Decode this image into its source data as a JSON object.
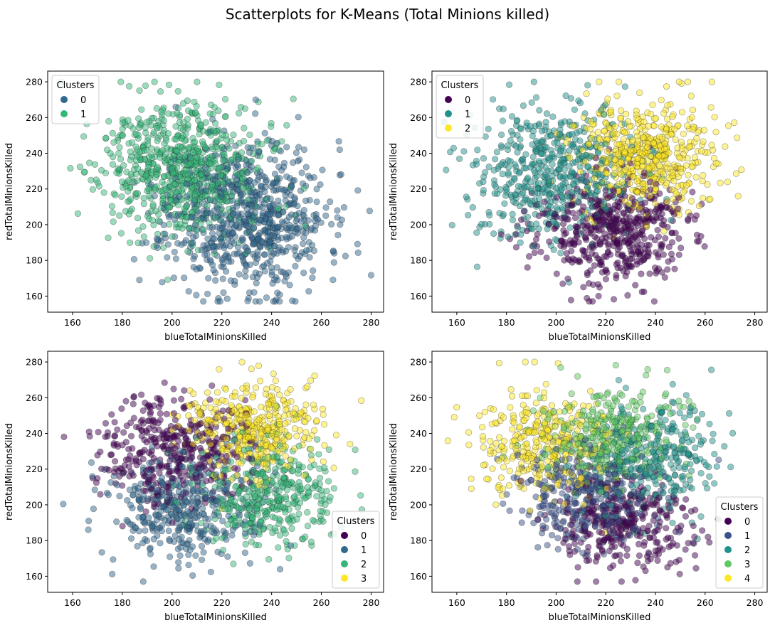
{
  "figure": {
    "suptitle": "Scatterplots for K-Means (Total Minions killed)"
  },
  "chart_data": [
    {
      "type": "scatter",
      "xlabel": "blueTotalMinionsKilled",
      "ylabel": "redTotalMinionsKilled",
      "xlim": [
        150,
        285
      ],
      "ylim": [
        151,
        286
      ],
      "xticks": [
        160,
        180,
        200,
        220,
        240,
        260,
        280
      ],
      "yticks": [
        160,
        180,
        200,
        220,
        240,
        260,
        280
      ],
      "legend": {
        "title": "Clusters",
        "position": "top-left"
      },
      "series": [
        {
          "name": "0",
          "color": "#31688e",
          "center": [
            230,
            205
          ],
          "spread": [
            16,
            21
          ]
        },
        {
          "name": "1",
          "color": "#35b779",
          "center": [
            205,
            230
          ],
          "spread": [
            16,
            19
          ]
        }
      ],
      "points_per_series": 750,
      "seed": 11
    },
    {
      "type": "scatter",
      "xlabel": "blueTotalMinionsKilled",
      "ylabel": "redTotalMinionsKilled",
      "xlim": [
        150,
        285
      ],
      "ylim": [
        151,
        286
      ],
      "xticks": [
        160,
        180,
        200,
        220,
        240,
        260,
        280
      ],
      "yticks": [
        160,
        180,
        200,
        220,
        240,
        260,
        280
      ],
      "legend": {
        "title": "Clusters",
        "position": "top-left"
      },
      "series": [
        {
          "name": "0",
          "color": "#440154",
          "center": [
            222,
            196
          ],
          "spread": [
            15,
            15
          ]
        },
        {
          "name": "1",
          "color": "#21918c",
          "center": [
            198,
            228
          ],
          "spread": [
            16,
            19
          ]
        },
        {
          "name": "2",
          "color": "#fde725",
          "center": [
            236,
            238
          ],
          "spread": [
            14,
            15
          ]
        }
      ],
      "points_per_series": 520,
      "seed": 23
    },
    {
      "type": "scatter",
      "xlabel": "blueTotalMinionsKilled",
      "ylabel": "redTotalMinionsKilled",
      "xlim": [
        150,
        285
      ],
      "ylim": [
        151,
        286
      ],
      "xticks": [
        160,
        180,
        200,
        220,
        240,
        260,
        280
      ],
      "yticks": [
        160,
        180,
        200,
        220,
        240,
        260,
        280
      ],
      "legend": {
        "title": "Clusters",
        "position": "bottom-right"
      },
      "series": [
        {
          "name": "0",
          "color": "#440154",
          "center": [
            200,
            232
          ],
          "spread": [
            14,
            15
          ]
        },
        {
          "name": "1",
          "color": "#31688e",
          "center": [
            205,
            198
          ],
          "spread": [
            15,
            15
          ]
        },
        {
          "name": "2",
          "color": "#35b779",
          "center": [
            238,
            205
          ],
          "spread": [
            14,
            15
          ]
        },
        {
          "name": "3",
          "color": "#fde725",
          "center": [
            232,
            243
          ],
          "spread": [
            13,
            13
          ]
        }
      ],
      "points_per_series": 400,
      "seed": 37
    },
    {
      "type": "scatter",
      "xlabel": "blueTotalMinionsKilled",
      "ylabel": "redTotalMinionsKilled",
      "xlim": [
        150,
        285
      ],
      "ylim": [
        151,
        286
      ],
      "xticks": [
        160,
        180,
        200,
        220,
        240,
        260,
        280
      ],
      "yticks": [
        160,
        180,
        200,
        220,
        240,
        260,
        280
      ],
      "legend": {
        "title": "Clusters",
        "position": "bottom-right"
      },
      "series": [
        {
          "name": "0",
          "color": "#440154",
          "center": [
            228,
            188
          ],
          "spread": [
            14,
            13
          ]
        },
        {
          "name": "1",
          "color": "#3b528b",
          "center": [
            212,
            205
          ],
          "spread": [
            14,
            14
          ]
        },
        {
          "name": "2",
          "color": "#21918c",
          "center": [
            238,
            226
          ],
          "spread": [
            14,
            16
          ]
        },
        {
          "name": "3",
          "color": "#5ec962",
          "center": [
            220,
            238
          ],
          "spread": [
            14,
            13
          ]
        },
        {
          "name": "4",
          "color": "#fde725",
          "center": [
            195,
            233
          ],
          "spread": [
            13,
            15
          ]
        }
      ],
      "points_per_series": 330,
      "seed": 51
    }
  ]
}
